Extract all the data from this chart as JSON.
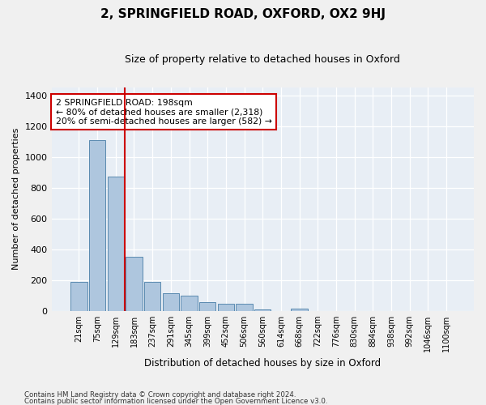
{
  "title": "2, SPRINGFIELD ROAD, OXFORD, OX2 9HJ",
  "subtitle": "Size of property relative to detached houses in Oxford",
  "xlabel": "Distribution of detached houses by size in Oxford",
  "ylabel": "Number of detached properties",
  "categories": [
    "21sqm",
    "75sqm",
    "129sqm",
    "183sqm",
    "237sqm",
    "291sqm",
    "345sqm",
    "399sqm",
    "452sqm",
    "506sqm",
    "560sqm",
    "614sqm",
    "668sqm",
    "722sqm",
    "776sqm",
    "830sqm",
    "884sqm",
    "938sqm",
    "992sqm",
    "1046sqm",
    "1100sqm"
  ],
  "values": [
    185,
    1110,
    870,
    350,
    185,
    115,
    100,
    55,
    45,
    45,
    10,
    0,
    15,
    0,
    0,
    0,
    0,
    0,
    0,
    0,
    0
  ],
  "bar_color": "#aec6de",
  "bar_edge_color": "#5a8ab0",
  "bg_color": "#e8eef5",
  "grid_color": "#ffffff",
  "vline_color": "#cc0000",
  "annotation_title": "2 SPRINGFIELD ROAD: 198sqm",
  "annotation_line1": "← 80% of detached houses are smaller (2,318)",
  "annotation_line2": "20% of semi-detached houses are larger (582) →",
  "footer1": "Contains HM Land Registry data © Crown copyright and database right 2024.",
  "footer2": "Contains public sector information licensed under the Open Government Licence v3.0.",
  "ylim": [
    0,
    1450
  ],
  "yticks": [
    0,
    200,
    400,
    600,
    800,
    1000,
    1200,
    1400
  ],
  "fig_bg": "#f0f0f0"
}
